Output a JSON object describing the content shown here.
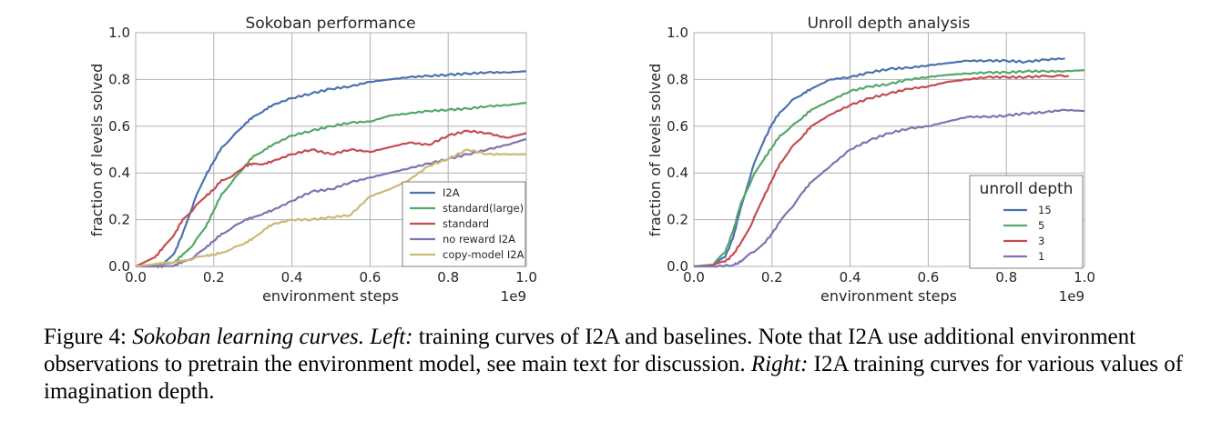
{
  "chart_data": [
    {
      "type": "line",
      "title": "Sokoban performance",
      "xlabel": "environment steps",
      "ylabel": "fraction of levels solved",
      "x_offset_label": "1e9",
      "xlim": [
        0.0,
        1.0
      ],
      "ylim": [
        0.0,
        1.0
      ],
      "xticks": [
        "0.0",
        "0.2",
        "0.4",
        "0.6",
        "0.8",
        "1.0"
      ],
      "yticks": [
        "0.0",
        "0.2",
        "0.4",
        "0.6",
        "0.8",
        "1.0"
      ],
      "grid": true,
      "legend_position": "bottom-right",
      "legend_title": "",
      "x": [
        0.0,
        0.05,
        0.07,
        0.1,
        0.12,
        0.15,
        0.18,
        0.2,
        0.22,
        0.25,
        0.28,
        0.3,
        0.33,
        0.35,
        0.4,
        0.45,
        0.5,
        0.55,
        0.6,
        0.65,
        0.7,
        0.75,
        0.8,
        0.85,
        0.9,
        0.95,
        1.0
      ],
      "series": [
        {
          "name": "I2A",
          "color": "#4C72B0",
          "values": [
            0.0,
            0.005,
            0.01,
            0.06,
            0.14,
            0.28,
            0.39,
            0.45,
            0.51,
            0.56,
            0.61,
            0.64,
            0.67,
            0.69,
            0.72,
            0.74,
            0.76,
            0.77,
            0.79,
            0.8,
            0.81,
            0.815,
            0.82,
            0.825,
            0.83,
            0.83,
            0.835
          ]
        },
        {
          "name": "standard(large)",
          "color": "#55A868",
          "values": [
            0.0,
            0.005,
            0.01,
            0.02,
            0.05,
            0.1,
            0.17,
            0.24,
            0.31,
            0.37,
            0.43,
            0.47,
            0.5,
            0.52,
            0.56,
            0.58,
            0.6,
            0.615,
            0.62,
            0.645,
            0.655,
            0.665,
            0.67,
            0.675,
            0.685,
            0.69,
            0.7
          ]
        },
        {
          "name": "standard",
          "color": "#C44E52",
          "values": [
            0.0,
            0.04,
            0.08,
            0.14,
            0.2,
            0.25,
            0.3,
            0.33,
            0.37,
            0.39,
            0.43,
            0.44,
            0.44,
            0.45,
            0.48,
            0.5,
            0.48,
            0.5,
            0.49,
            0.51,
            0.53,
            0.52,
            0.56,
            0.58,
            0.57,
            0.55,
            0.57
          ]
        },
        {
          "name": "no reward I2A",
          "color": "#8172B2",
          "values": [
            0.0,
            0.0,
            0.0,
            0.005,
            0.02,
            0.04,
            0.08,
            0.11,
            0.14,
            0.17,
            0.2,
            0.21,
            0.23,
            0.24,
            0.28,
            0.32,
            0.33,
            0.36,
            0.38,
            0.4,
            0.42,
            0.44,
            0.46,
            0.48,
            0.5,
            0.52,
            0.545
          ]
        },
        {
          "name": "copy-model I2A",
          "color": "#CCB974",
          "values": [
            0.0,
            0.01,
            0.015,
            0.02,
            0.025,
            0.035,
            0.045,
            0.05,
            0.06,
            0.08,
            0.1,
            0.12,
            0.16,
            0.18,
            0.2,
            0.2,
            0.21,
            0.22,
            0.3,
            0.33,
            0.37,
            0.43,
            0.46,
            0.5,
            0.48,
            0.48,
            0.48
          ]
        }
      ]
    },
    {
      "type": "line",
      "title": "Unroll depth analysis",
      "xlabel": "environment steps",
      "ylabel": "fraction of levels solved",
      "x_offset_label": "1e9",
      "xlim": [
        0.0,
        1.0
      ],
      "ylim": [
        0.0,
        1.0
      ],
      "xticks": [
        "0.0",
        "0.2",
        "0.4",
        "0.6",
        "0.8",
        "1.0"
      ],
      "yticks": [
        "0.0",
        "0.2",
        "0.4",
        "0.6",
        "0.8",
        "1.0"
      ],
      "grid": true,
      "legend_position": "bottom-right",
      "legend_title": "unroll depth",
      "series": [
        {
          "name": "15",
          "color": "#4C72B0",
          "x": [
            0.0,
            0.05,
            0.08,
            0.1,
            0.12,
            0.15,
            0.18,
            0.2,
            0.22,
            0.25,
            0.28,
            0.3,
            0.35,
            0.4,
            0.45,
            0.5,
            0.55,
            0.6,
            0.65,
            0.7,
            0.75,
            0.8,
            0.85,
            0.9,
            0.95
          ],
          "values": [
            0.0,
            0.005,
            0.04,
            0.12,
            0.25,
            0.42,
            0.54,
            0.61,
            0.66,
            0.71,
            0.74,
            0.76,
            0.8,
            0.81,
            0.83,
            0.845,
            0.85,
            0.86,
            0.87,
            0.88,
            0.88,
            0.88,
            0.875,
            0.885,
            0.89
          ]
        },
        {
          "name": "5",
          "color": "#55A868",
          "x": [
            0.0,
            0.05,
            0.08,
            0.1,
            0.12,
            0.15,
            0.18,
            0.2,
            0.22,
            0.25,
            0.28,
            0.3,
            0.35,
            0.4,
            0.45,
            0.5,
            0.55,
            0.6,
            0.65,
            0.7,
            0.75,
            0.8,
            0.85,
            0.9,
            0.95,
            1.0
          ],
          "values": [
            0.0,
            0.008,
            0.06,
            0.15,
            0.27,
            0.38,
            0.46,
            0.51,
            0.56,
            0.6,
            0.64,
            0.67,
            0.71,
            0.75,
            0.77,
            0.78,
            0.8,
            0.81,
            0.82,
            0.825,
            0.83,
            0.83,
            0.835,
            0.835,
            0.835,
            0.84
          ]
        },
        {
          "name": "3",
          "color": "#C44E52",
          "x": [
            0.0,
            0.05,
            0.08,
            0.1,
            0.12,
            0.15,
            0.18,
            0.2,
            0.22,
            0.25,
            0.28,
            0.3,
            0.35,
            0.4,
            0.45,
            0.5,
            0.55,
            0.6,
            0.65,
            0.7,
            0.75,
            0.8,
            0.85,
            0.9,
            0.96
          ],
          "values": [
            0.0,
            0.005,
            0.02,
            0.05,
            0.1,
            0.19,
            0.3,
            0.37,
            0.44,
            0.51,
            0.56,
            0.6,
            0.65,
            0.69,
            0.72,
            0.74,
            0.76,
            0.77,
            0.79,
            0.8,
            0.81,
            0.81,
            0.81,
            0.815,
            0.815
          ]
        },
        {
          "name": "1",
          "color": "#8172B2",
          "x": [
            0.0,
            0.05,
            0.1,
            0.12,
            0.15,
            0.18,
            0.2,
            0.22,
            0.25,
            0.28,
            0.3,
            0.35,
            0.4,
            0.45,
            0.5,
            0.55,
            0.6,
            0.65,
            0.7,
            0.75,
            0.8,
            0.85,
            0.9,
            0.95,
            1.0
          ],
          "values": [
            0.0,
            0.0,
            0.005,
            0.02,
            0.06,
            0.1,
            0.14,
            0.19,
            0.25,
            0.32,
            0.36,
            0.43,
            0.5,
            0.54,
            0.57,
            0.59,
            0.6,
            0.62,
            0.64,
            0.64,
            0.645,
            0.655,
            0.66,
            0.67,
            0.665
          ]
        }
      ]
    }
  ],
  "caption": {
    "label": "Figure 4: ",
    "title_italic": "Sokoban learning curves. ",
    "left_italic": "Left:",
    "left_text": " training curves of I2A and baselines. Note that I2A use additional environment observations to pretrain the environment model, see main text for discussion. ",
    "right_italic": "Right:",
    "right_text": " I2A training curves for various values of imagination depth."
  }
}
